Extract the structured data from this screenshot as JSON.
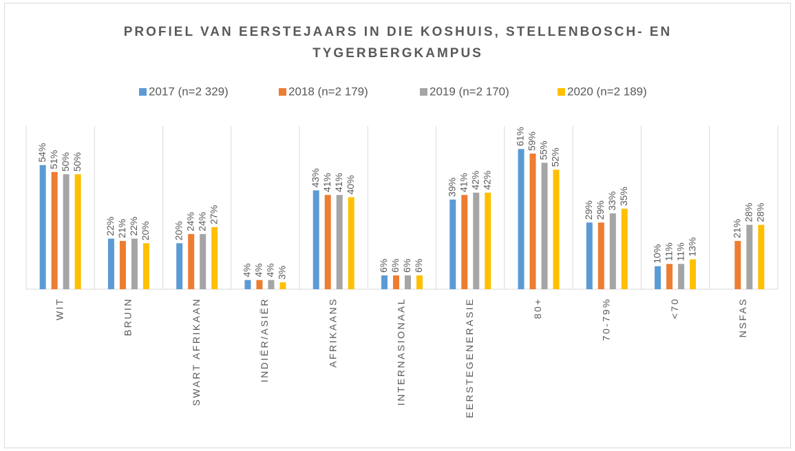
{
  "chart_data": {
    "type": "bar",
    "title": [
      "PROFIEL VAN EERSTEJAARS IN DIE KOSHUIS, STELLENBOSCH- EN",
      "TYGERBERGKAMPUS"
    ],
    "categories": [
      "WIT",
      "BRUIN",
      "SWART AFRIKAAN",
      "INDIËR/ASIËR",
      "AFRIKAANS",
      "INTERNASIONAAL",
      "EERSTEGENERASIE",
      "80+",
      "70-79%",
      "<70",
      "NSFAS"
    ],
    "ylim": [
      0,
      71
    ],
    "grid": true,
    "legend": "top",
    "series": [
      {
        "name": "2017 (n=2 329)",
        "color": "#5b9bd5",
        "values": [
          54,
          22,
          20,
          4,
          43,
          6,
          39,
          61,
          29,
          10,
          null
        ],
        "value_labels": [
          "54%",
          "22%",
          "20%",
          "4%",
          "43%",
          "6%",
          "39%",
          "61%",
          "29%",
          "10%",
          null
        ]
      },
      {
        "name": "2018 (n=2 179)",
        "color": "#ed7d31",
        "values": [
          51,
          21,
          24,
          4,
          41,
          6,
          41,
          59,
          29,
          11,
          21
        ],
        "value_labels": [
          "51%",
          "21%",
          "24%",
          "4%",
          "41%",
          "6%",
          "41%",
          "59%",
          "29%",
          "11%",
          "21%"
        ]
      },
      {
        "name": "2019 (n=2 170)",
        "color": "#a5a5a5",
        "values": [
          50,
          22,
          24,
          4,
          41,
          6,
          42,
          55,
          33,
          11,
          28
        ],
        "value_labels": [
          "50%",
          "22%",
          "24%",
          "4%",
          "41%",
          "6%",
          "42%",
          "55%",
          "33%",
          "11%",
          "28%"
        ]
      },
      {
        "name": "2020 (n=2 189)",
        "color": "#ffc000",
        "values": [
          50,
          20,
          27,
          3,
          40,
          6,
          42,
          52,
          35,
          13,
          28
        ],
        "value_labels": [
          "50%",
          "20%",
          "27%",
          "3%",
          "40%",
          "6%",
          "42%",
          "52%",
          "35%",
          "13%",
          "28%"
        ]
      }
    ]
  }
}
